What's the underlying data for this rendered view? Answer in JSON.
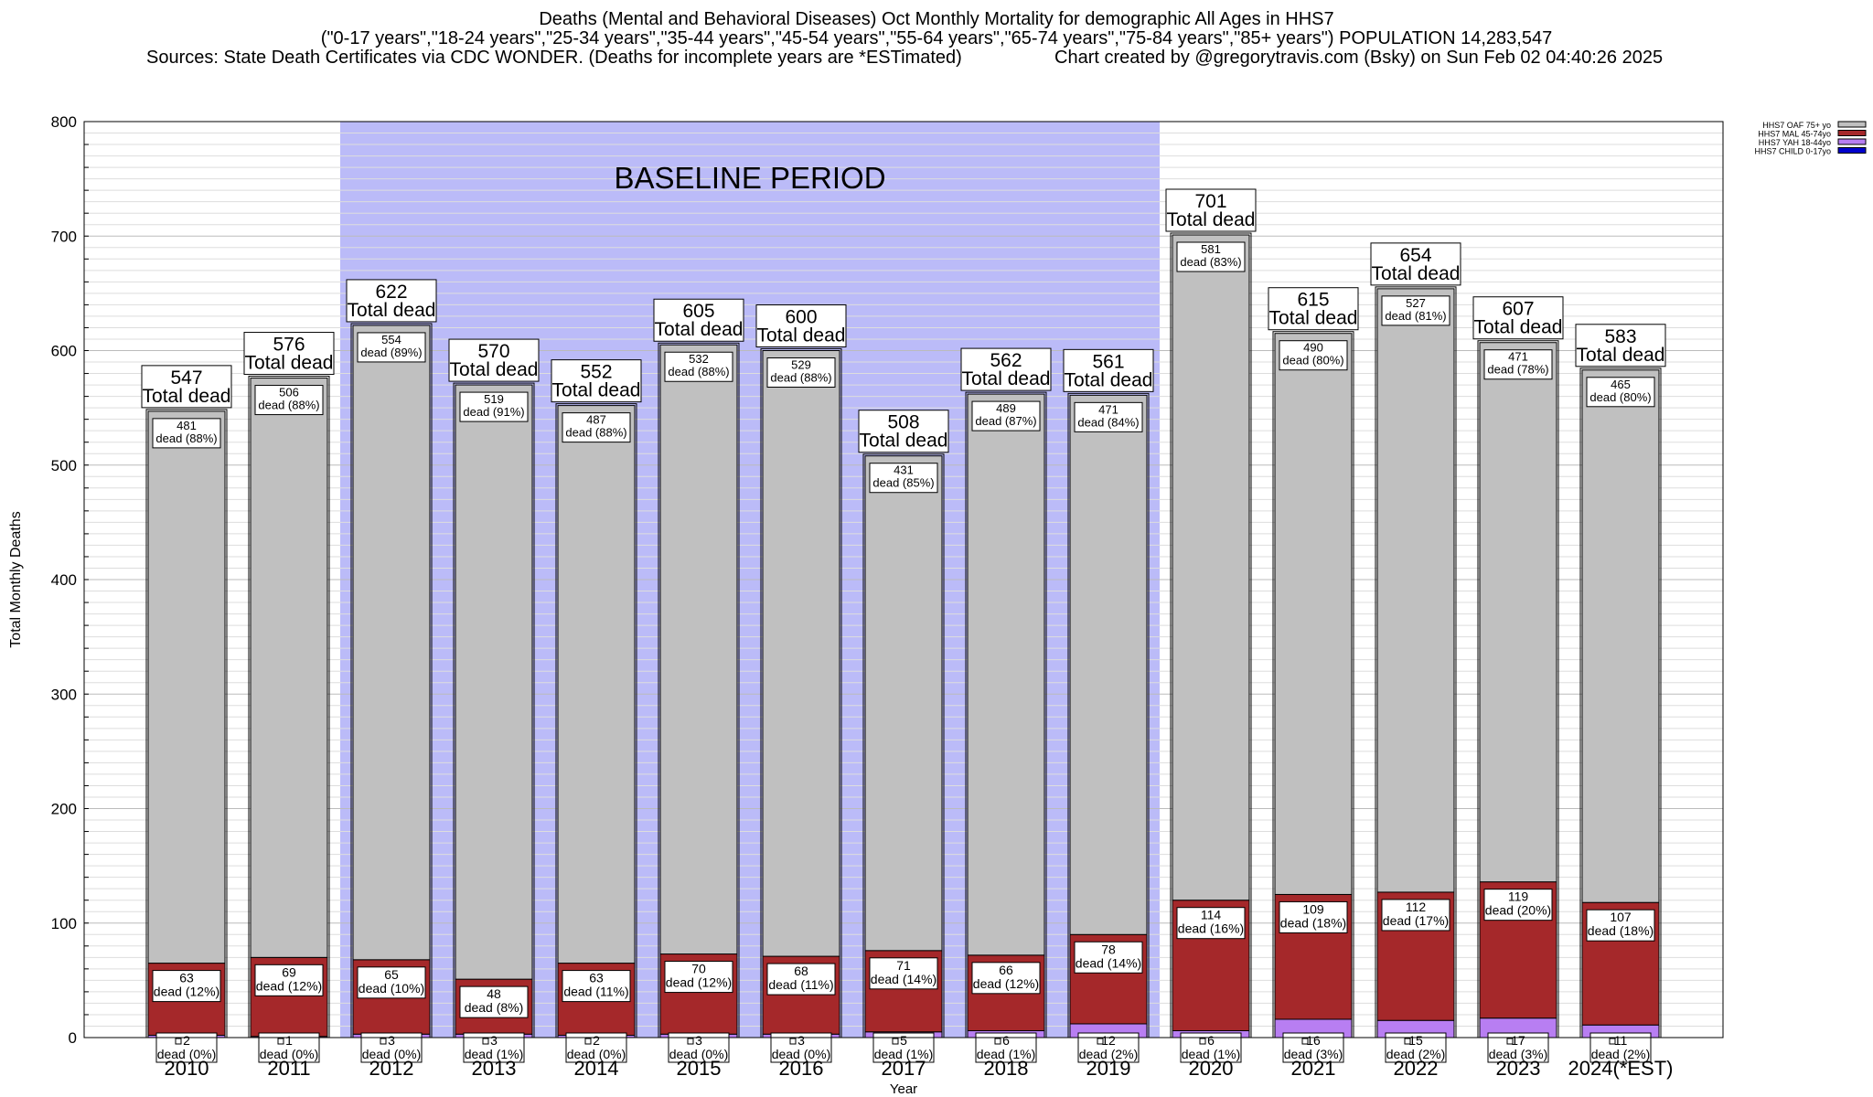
{
  "title": {
    "line1": "Deaths (Mental and Behavioral Diseases) Oct Monthly Mortality for demographic All Ages in HHS7",
    "line2": "(\"0-17 years\",\"18-24 years\",\"25-34 years\",\"35-44 years\",\"45-54 years\",\"55-64 years\",\"65-74 years\",\"75-84 years\",\"85+ years\") POPULATION 14,283,547",
    "sources": "Sources: State Death Certificates via CDC WONDER. (Deaths for incomplete years are *ESTimated)",
    "credit": "Chart created by @gregorytravis.com (Bsky) on Sun Feb 02 04:40:26 2025"
  },
  "chart_data": {
    "type": "bar",
    "stacked": true,
    "xlabel": "Year",
    "ylabel": "Total Monthly Deaths",
    "ylim": [
      0,
      800
    ],
    "yticks": [
      0,
      100,
      200,
      300,
      400,
      500,
      600,
      700,
      800
    ],
    "grid": true,
    "legend_position": "top-right",
    "categories": [
      "2010",
      "2011",
      "2012",
      "2013",
      "2014",
      "2015",
      "2016",
      "2017",
      "2018",
      "2019",
      "2020",
      "2021",
      "2022",
      "2023",
      "2024(*EST)"
    ],
    "totals": [
      547,
      576,
      622,
      570,
      552,
      605,
      600,
      508,
      562,
      561,
      701,
      615,
      654,
      607,
      583
    ],
    "total_label": "Total dead",
    "series": [
      {
        "name": "HHS7 CHILD 0-17yo",
        "color": "#0000cc",
        "values": [
          0,
          0,
          0,
          0,
          0,
          0,
          0,
          0,
          0,
          0,
          0,
          0,
          0,
          0,
          0
        ],
        "labels": []
      },
      {
        "name": "HHS7 YAH 18-44yo",
        "color": "#b87ef2",
        "values": [
          2,
          1,
          3,
          3,
          2,
          3,
          3,
          5,
          6,
          12,
          6,
          16,
          15,
          17,
          11
        ],
        "labels": [
          "dead (0%)",
          "dead (0%)",
          "dead (0%)",
          "dead (1%)",
          "dead (0%)",
          "dead (0%)",
          "dead (0%)",
          "dead (1%)",
          "dead (1%)",
          "dead (2%)",
          "dead (1%)",
          "dead (3%)",
          "dead (2%)",
          "dead (3%)",
          "dead (2%)"
        ]
      },
      {
        "name": "HHS7 MAL 45-74yo",
        "color": "#a5282a",
        "values": [
          63,
          69,
          65,
          48,
          63,
          70,
          68,
          71,
          66,
          78,
          114,
          109,
          112,
          119,
          107
        ],
        "labels": [
          "dead (12%)",
          "dead (12%)",
          "dead (10%)",
          "dead (8%)",
          "dead (11%)",
          "dead (12%)",
          "dead (11%)",
          "dead (14%)",
          "dead (12%)",
          "dead (14%)",
          "dead (16%)",
          "dead (18%)",
          "dead (17%)",
          "dead (20%)",
          "dead (18%)"
        ]
      },
      {
        "name": "HHS7 OAF 75+ yo",
        "color": "#c0c0c0",
        "values": [
          481,
          506,
          554,
          519,
          487,
          532,
          529,
          431,
          489,
          471,
          581,
          490,
          527,
          471,
          465
        ],
        "labels": [
          "dead (88%)",
          "dead (88%)",
          "dead (89%)",
          "dead (91%)",
          "dead (88%)",
          "dead (88%)",
          "dead (88%)",
          "dead (85%)",
          "dead (87%)",
          "dead (84%)",
          "dead (83%)",
          "dead (80%)",
          "dead (81%)",
          "dead (78%)",
          "dead (80%)"
        ]
      }
    ],
    "annotation": {
      "text": "BASELINE PERIOD",
      "from": "2012",
      "to": "2019",
      "color": "#bbbbf8"
    }
  }
}
